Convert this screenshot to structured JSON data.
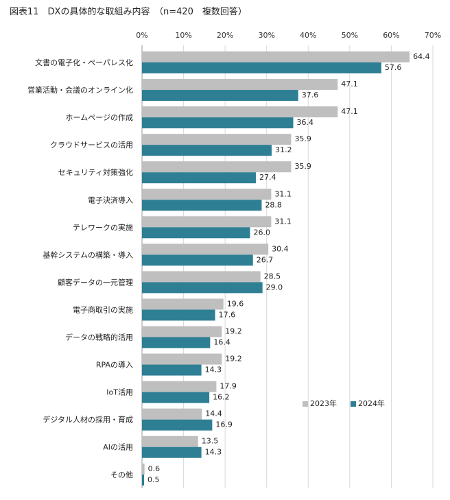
{
  "figure": {
    "title": "図表11　DXの具体的な取組み内容　（n=420　複数回答）"
  },
  "chart_data": {
    "type": "bar",
    "orientation": "horizontal",
    "title": "図表11　DXの具体的な取組み内容　（n=420　複数回答）",
    "xlabel": "",
    "ylabel": "",
    "xlim": [
      0,
      70
    ],
    "tick_step": 10,
    "tick_labels": [
      "0%",
      "10%",
      "20%",
      "30%",
      "40%",
      "50%",
      "60%",
      "70%"
    ],
    "grid": true,
    "legend_position": "bottom-right",
    "categories": [
      "文書の電子化・ペーパレス化",
      "営業活動・会議のオンライン化",
      "ホームページの作成",
      "クラウドサービスの活用",
      "セキュリティ対策強化",
      "電子決済導入",
      "テレワークの実施",
      "基幹システムの構築・導入",
      "顧客データの一元管理",
      "電子商取引の実施",
      "データの戦略的活用",
      "RPAの導入",
      "IoT活用",
      "デジタル人材の採用・育成",
      "AIの活用",
      "その他"
    ],
    "series": [
      {
        "name": "2023年",
        "color": "#bfbfbf",
        "values": [
          64.4,
          47.1,
          47.1,
          35.9,
          35.9,
          31.1,
          31.1,
          30.4,
          28.5,
          19.6,
          19.2,
          19.2,
          17.9,
          14.4,
          13.5,
          0.6
        ],
        "labels": [
          "64.4",
          "47.1",
          "47.1",
          "35.9",
          "35.9",
          "31.1",
          "31.1",
          "30.4",
          "28.5",
          "19.6",
          "19.2",
          "19.2",
          "17.9",
          "14.4",
          "13.5",
          "0.6"
        ]
      },
      {
        "name": "2024年",
        "color": "#2e7f94",
        "values": [
          57.6,
          37.6,
          36.4,
          31.2,
          27.4,
          28.8,
          26.0,
          26.7,
          29.0,
          17.6,
          16.4,
          14.3,
          16.2,
          16.9,
          14.3,
          0.5
        ],
        "labels": [
          "57.6",
          "37.6",
          "36.4",
          "31.2",
          "27.4",
          "28.8",
          "26.0",
          "26.7",
          "29.0",
          "17.6",
          "16.4",
          "14.3",
          "16.2",
          "16.9",
          "14.3",
          "0.5"
        ]
      }
    ]
  }
}
